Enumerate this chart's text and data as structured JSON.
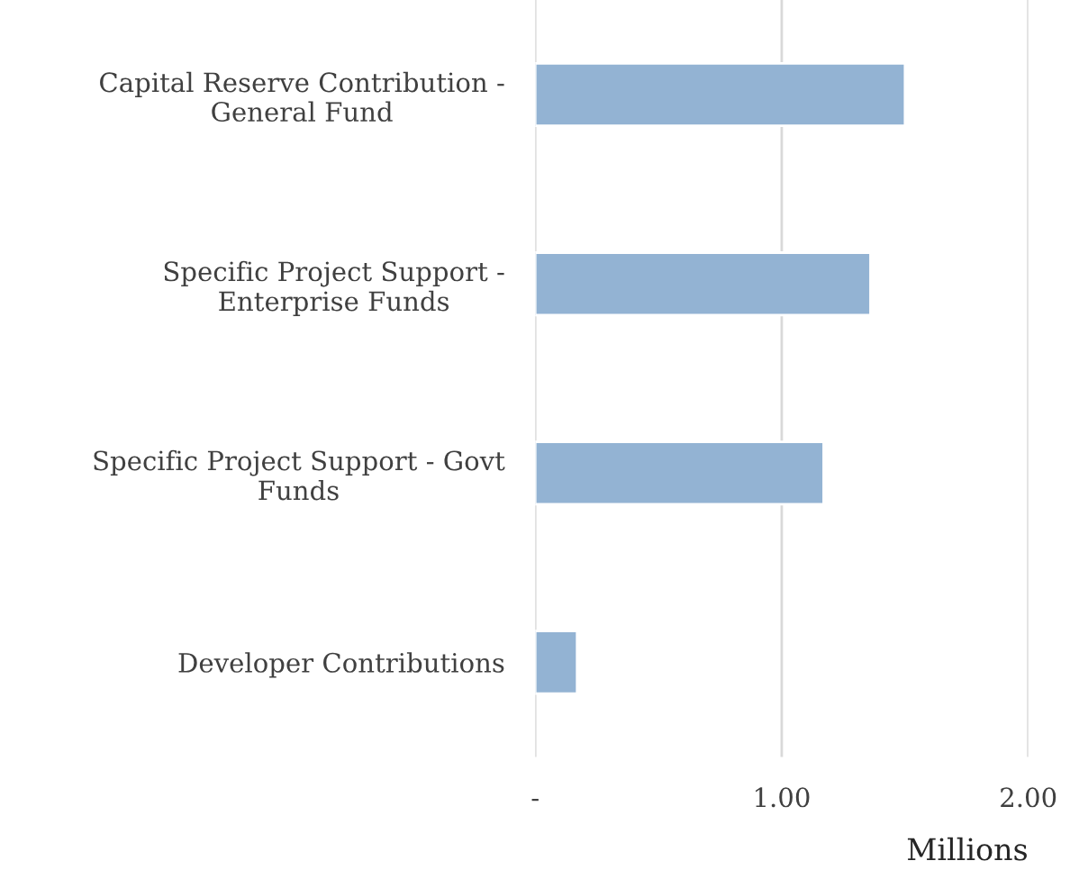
{
  "chart_data": {
    "type": "bar",
    "orientation": "horizontal",
    "xlabel": "Millions",
    "categories": [
      "Capital Reserve Contribution -\nGeneral Fund",
      "Specific Project Support -\nEnterprise Funds",
      "Specific Project Support - Govt\nFunds",
      "Developer Contributions"
    ],
    "values": [
      1.5,
      1.36,
      1.17,
      0.17
    ],
    "color": "#93b3d3",
    "xlim": [
      0,
      2
    ],
    "xticks": [
      {
        "value": 0,
        "label": "-"
      },
      {
        "value": 1,
        "label": "1.00"
      },
      {
        "value": 2,
        "label": "2.00"
      }
    ],
    "grid": "x",
    "legend": false
  }
}
